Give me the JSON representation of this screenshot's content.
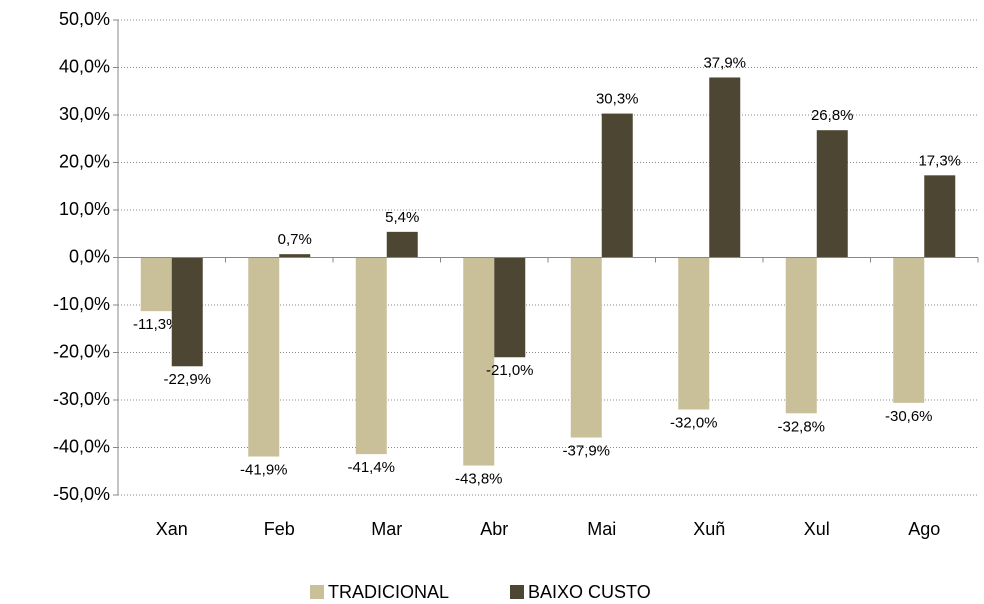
{
  "chart_data": {
    "type": "bar",
    "categories": [
      "Xan",
      "Feb",
      "Mar",
      "Abr",
      "Mai",
      "Xuñ",
      "Xul",
      "Ago"
    ],
    "series": [
      {
        "name": "TRADICIONAL",
        "color": "#c9bf99",
        "values": [
          -11.3,
          -41.9,
          -41.4,
          -43.8,
          -37.9,
          -32.0,
          -32.8,
          -30.6
        ],
        "value_labels": [
          "-11,3%",
          "-41,9%",
          "-41,4%",
          "-43,8%",
          "-37,9%",
          "-32,0%",
          "-32,8%",
          "-30,6%"
        ]
      },
      {
        "name": "BAIXO CUSTO",
        "color": "#4d4632",
        "values": [
          -22.9,
          0.7,
          5.4,
          -21.0,
          30.3,
          37.9,
          26.8,
          17.3
        ],
        "value_labels": [
          "-22,9%",
          "0,7%",
          "5,4%",
          "-21,0%",
          "30,3%",
          "37,9%",
          "26,8%",
          "17,3%"
        ]
      }
    ],
    "ylim": [
      -50,
      50
    ],
    "yticks": [
      {
        "value": -50,
        "label": "-50,0%"
      },
      {
        "value": -40,
        "label": "-40,0%"
      },
      {
        "value": -30,
        "label": "-30,0%"
      },
      {
        "value": -20,
        "label": "-20,0%"
      },
      {
        "value": -10,
        "label": "-10,0%"
      },
      {
        "value": 0,
        "label": "0,0%"
      },
      {
        "value": 10,
        "label": "10,0%"
      },
      {
        "value": 20,
        "label": "20,0%"
      },
      {
        "value": 30,
        "label": "30,0%"
      },
      {
        "value": 40,
        "label": "40,0%"
      },
      {
        "value": 50,
        "label": "50,0%"
      }
    ],
    "grid": true,
    "legend": "bottom"
  }
}
